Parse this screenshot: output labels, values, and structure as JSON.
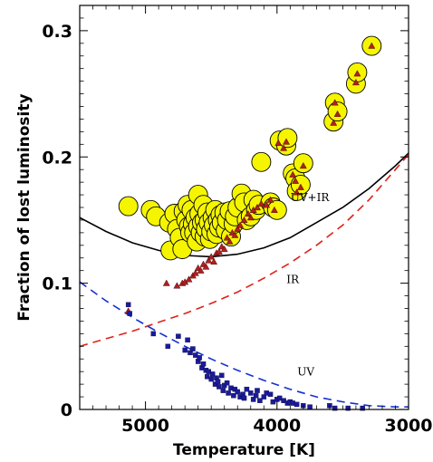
{
  "chart_data": {
    "type": "scatter",
    "title": "",
    "xlabel": "Temperature [K]",
    "ylabel": "Fraction of lost luminosity",
    "xlim": [
      5500,
      3000
    ],
    "ylim": [
      0,
      0.32
    ],
    "x_reversed": true,
    "x_ticks": [
      5000,
      4000,
      3000
    ],
    "x_tick_labels": [
      "5000",
      "4000",
      "3000"
    ],
    "y_ticks": [
      0,
      0.1,
      0.2,
      0.3
    ],
    "y_tick_labels": [
      "0",
      "0.1",
      "0.2",
      "0.3"
    ],
    "grid": false,
    "colors": {
      "total_circle_fill": "#f5f500",
      "ir_triangle_fill": "#b02020",
      "uv_square_fill": "#1a1a9a",
      "uv_curve": "#1530d0",
      "ir_curve": "#e0201a",
      "total_curve": "#000000"
    },
    "series": [
      {
        "label": "UV+IR",
        "kind": "scatter",
        "marker": "circle",
        "points": [
          [
            5130,
            0.161
          ],
          [
            4960,
            0.158
          ],
          [
            4920,
            0.153
          ],
          [
            4820,
            0.148
          ],
          [
            4810,
            0.126
          ],
          [
            4780,
            0.155
          ],
          [
            4760,
            0.143
          ],
          [
            4740,
            0.136
          ],
          [
            4720,
            0.127
          ],
          [
            4710,
            0.157
          ],
          [
            4690,
            0.15
          ],
          [
            4680,
            0.162
          ],
          [
            4670,
            0.145
          ],
          [
            4660,
            0.14
          ],
          [
            4650,
            0.158
          ],
          [
            4640,
            0.147
          ],
          [
            4630,
            0.14
          ],
          [
            4620,
            0.152
          ],
          [
            4610,
            0.133
          ],
          [
            4600,
            0.17
          ],
          [
            4600,
            0.145
          ],
          [
            4590,
            0.155
          ],
          [
            4580,
            0.14
          ],
          [
            4570,
            0.148
          ],
          [
            4560,
            0.162
          ],
          [
            4550,
            0.137
          ],
          [
            4550,
            0.15
          ],
          [
            4540,
            0.143
          ],
          [
            4530,
            0.156
          ],
          [
            4520,
            0.148
          ],
          [
            4510,
            0.135
          ],
          [
            4500,
            0.141
          ],
          [
            4490,
            0.152
          ],
          [
            4480,
            0.146
          ],
          [
            4470,
            0.158
          ],
          [
            4460,
            0.139
          ],
          [
            4450,
            0.15
          ],
          [
            4440,
            0.144
          ],
          [
            4430,
            0.154
          ],
          [
            4420,
            0.148
          ],
          [
            4400,
            0.156
          ],
          [
            4390,
            0.142
          ],
          [
            4380,
            0.15
          ],
          [
            4360,
            0.157
          ],
          [
            4350,
            0.137
          ],
          [
            4330,
            0.147
          ],
          [
            4320,
            0.153
          ],
          [
            4300,
            0.16
          ],
          [
            4270,
            0.171
          ],
          [
            4250,
            0.164
          ],
          [
            4230,
            0.15
          ],
          [
            4200,
            0.153
          ],
          [
            4180,
            0.166
          ],
          [
            4160,
            0.158
          ],
          [
            4140,
            0.162
          ],
          [
            4120,
            0.196
          ],
          [
            4050,
            0.164
          ],
          [
            4030,
            0.16
          ],
          [
            4000,
            0.158
          ],
          [
            3980,
            0.213
          ],
          [
            3930,
            0.209
          ],
          [
            3920,
            0.215
          ],
          [
            3880,
            0.187
          ],
          [
            3860,
            0.183
          ],
          [
            3850,
            0.173
          ],
          [
            3820,
            0.178
          ],
          [
            3800,
            0.195
          ],
          [
            3570,
            0.228
          ],
          [
            3560,
            0.243
          ],
          [
            3540,
            0.236
          ],
          [
            3400,
            0.258
          ],
          [
            3390,
            0.267
          ],
          [
            3280,
            0.288
          ]
        ]
      },
      {
        "label": "IR",
        "kind": "scatter",
        "marker": "triangle",
        "points": [
          [
            5130,
            0.078
          ],
          [
            4840,
            0.1
          ],
          [
            4760,
            0.098
          ],
          [
            4720,
            0.1
          ],
          [
            4700,
            0.101
          ],
          [
            4670,
            0.103
          ],
          [
            4640,
            0.106
          ],
          [
            4620,
            0.108
          ],
          [
            4600,
            0.112
          ],
          [
            4580,
            0.11
          ],
          [
            4560,
            0.115
          ],
          [
            4540,
            0.113
          ],
          [
            4520,
            0.118
          ],
          [
            4500,
            0.121
          ],
          [
            4480,
            0.117
          ],
          [
            4460,
            0.124
          ],
          [
            4440,
            0.125
          ],
          [
            4420,
            0.129
          ],
          [
            4400,
            0.127
          ],
          [
            4380,
            0.136
          ],
          [
            4360,
            0.133
          ],
          [
            4340,
            0.14
          ],
          [
            4320,
            0.138
          ],
          [
            4300,
            0.143
          ],
          [
            4280,
            0.146
          ],
          [
            4250,
            0.15
          ],
          [
            4220,
            0.155
          ],
          [
            4200,
            0.152
          ],
          [
            4180,
            0.158
          ],
          [
            4150,
            0.16
          ],
          [
            4120,
            0.163
          ],
          [
            4080,
            0.162
          ],
          [
            4050,
            0.166
          ],
          [
            4020,
            0.158
          ],
          [
            3990,
            0.211
          ],
          [
            3950,
            0.207
          ],
          [
            3930,
            0.212
          ],
          [
            3880,
            0.186
          ],
          [
            3860,
            0.181
          ],
          [
            3850,
            0.172
          ],
          [
            3820,
            0.176
          ],
          [
            3800,
            0.193
          ],
          [
            3570,
            0.227
          ],
          [
            3560,
            0.243
          ],
          [
            3540,
            0.234
          ],
          [
            3400,
            0.259
          ],
          [
            3390,
            0.266
          ],
          [
            3280,
            0.288
          ]
        ]
      },
      {
        "label": "UV",
        "kind": "scatter",
        "marker": "square",
        "points": [
          [
            5130,
            0.083
          ],
          [
            5120,
            0.076
          ],
          [
            4940,
            0.06
          ],
          [
            4830,
            0.05
          ],
          [
            4750,
            0.058
          ],
          [
            4700,
            0.047
          ],
          [
            4680,
            0.055
          ],
          [
            4660,
            0.045
          ],
          [
            4640,
            0.048
          ],
          [
            4620,
            0.043
          ],
          [
            4600,
            0.038
          ],
          [
            4590,
            0.041
          ],
          [
            4570,
            0.033
          ],
          [
            4560,
            0.036
          ],
          [
            4540,
            0.031
          ],
          [
            4530,
            0.026
          ],
          [
            4520,
            0.03
          ],
          [
            4500,
            0.024
          ],
          [
            4490,
            0.028
          ],
          [
            4470,
            0.02
          ],
          [
            4460,
            0.025
          ],
          [
            4450,
            0.022
          ],
          [
            4440,
            0.018
          ],
          [
            4420,
            0.027
          ],
          [
            4410,
            0.015
          ],
          [
            4400,
            0.019
          ],
          [
            4380,
            0.021
          ],
          [
            4370,
            0.013
          ],
          [
            4350,
            0.017
          ],
          [
            4330,
            0.011
          ],
          [
            4320,
            0.016
          ],
          [
            4300,
            0.014
          ],
          [
            4280,
            0.01
          ],
          [
            4260,
            0.012
          ],
          [
            4250,
            0.009
          ],
          [
            4230,
            0.016
          ],
          [
            4200,
            0.013
          ],
          [
            4180,
            0.008
          ],
          [
            4160,
            0.011
          ],
          [
            4150,
            0.015
          ],
          [
            4130,
            0.007
          ],
          [
            4100,
            0.01
          ],
          [
            4080,
            0.013
          ],
          [
            4050,
            0.012
          ],
          [
            4030,
            0.006
          ],
          [
            4000,
            0.008
          ],
          [
            3980,
            0.009
          ],
          [
            3950,
            0.007
          ],
          [
            3920,
            0.005
          ],
          [
            3900,
            0.006
          ],
          [
            3880,
            0.005
          ],
          [
            3850,
            0.004
          ],
          [
            3800,
            0.003
          ],
          [
            3750,
            0.002
          ],
          [
            3600,
            0.003
          ],
          [
            3560,
            0.001
          ],
          [
            3460,
            0.001
          ],
          [
            3350,
            0.001
          ]
        ]
      },
      {
        "label": "UV+IR",
        "kind": "line",
        "style": "solid",
        "points": [
          [
            5500,
            0.152
          ],
          [
            5300,
            0.141
          ],
          [
            5100,
            0.132
          ],
          [
            4900,
            0.126
          ],
          [
            4700,
            0.122
          ],
          [
            4500,
            0.121
          ],
          [
            4300,
            0.123
          ],
          [
            4100,
            0.128
          ],
          [
            3900,
            0.136
          ],
          [
            3700,
            0.148
          ],
          [
            3500,
            0.16
          ],
          [
            3300,
            0.175
          ],
          [
            3100,
            0.193
          ],
          [
            3000,
            0.203
          ]
        ]
      },
      {
        "label": "IR",
        "kind": "line",
        "style": "dashed",
        "points": [
          [
            5500,
            0.05
          ],
          [
            5300,
            0.056
          ],
          [
            5100,
            0.062
          ],
          [
            4900,
            0.069
          ],
          [
            4700,
            0.076
          ],
          [
            4500,
            0.084
          ],
          [
            4300,
            0.093
          ],
          [
            4100,
            0.104
          ],
          [
            3900,
            0.116
          ],
          [
            3700,
            0.13
          ],
          [
            3500,
            0.146
          ],
          [
            3300,
            0.166
          ],
          [
            3100,
            0.19
          ],
          [
            3000,
            0.202
          ]
        ]
      },
      {
        "label": "UV",
        "kind": "line",
        "style": "dashed",
        "points": [
          [
            5500,
            0.101
          ],
          [
            5300,
            0.086
          ],
          [
            5100,
            0.073
          ],
          [
            4900,
            0.061
          ],
          [
            4700,
            0.05
          ],
          [
            4500,
            0.04
          ],
          [
            4300,
            0.031
          ],
          [
            4100,
            0.023
          ],
          [
            3900,
            0.016
          ],
          [
            3700,
            0.01
          ],
          [
            3500,
            0.006
          ],
          [
            3300,
            0.003
          ],
          [
            3100,
            0.002
          ],
          [
            3000,
            0.002
          ]
        ]
      }
    ],
    "annotations": [
      {
        "text": "UV+IR",
        "x": 3750,
        "y": 0.165
      },
      {
        "text": "IR",
        "x": 3880,
        "y": 0.1
      },
      {
        "text": "UV",
        "x": 3780,
        "y": 0.027
      }
    ]
  }
}
